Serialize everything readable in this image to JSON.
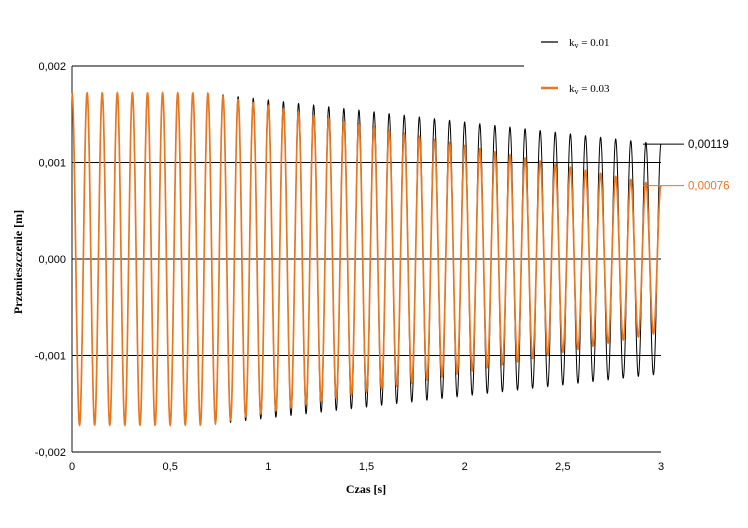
{
  "chart_data": {
    "type": "line",
    "xlabel": "Czas [s]",
    "ylabel": "Przemieszczenie [m]",
    "xlim": [
      0,
      3
    ],
    "ylim": [
      -0.002,
      0.002
    ],
    "x_ticks": [
      "0",
      "0,5",
      "1",
      "1,5",
      "2",
      "2,5",
      "3"
    ],
    "y_ticks": [
      "-0,002",
      "-0,001",
      "0,000",
      "0,001",
      "0,002"
    ],
    "grid": "horizontal",
    "legend_position": "top-right",
    "frequency_hz": 13.0,
    "series": [
      {
        "name": "kv = 0.01",
        "name_main": "k",
        "name_sub": "v",
        "name_rest": " = 0.01",
        "color": "#000000",
        "x": [
          0,
          0.68,
          3
        ],
        "envelope": [
          0.00172,
          0.00172,
          0.00119
        ],
        "end_label": "0,00119"
      },
      {
        "name": "kv = 0.03",
        "name_main": "k",
        "name_sub": "v",
        "name_rest": " = 0.03",
        "color": "#e87722",
        "x": [
          0,
          0.68,
          3
        ],
        "envelope": [
          0.00172,
          0.00172,
          0.00076
        ],
        "end_label": "0,00076"
      }
    ]
  }
}
